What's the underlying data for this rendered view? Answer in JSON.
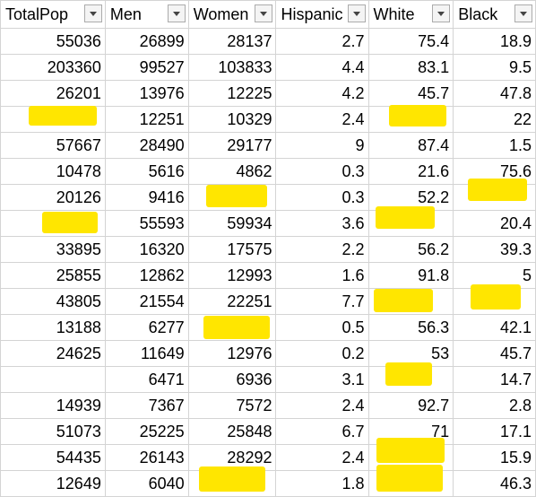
{
  "headers": [
    "TotalPop",
    "Men",
    "Women",
    "Hispanic",
    "White",
    "Black"
  ],
  "rows": [
    [
      "55036",
      "26899",
      "28137",
      "2.7",
      "75.4",
      "18.9"
    ],
    [
      "203360",
      "99527",
      "103833",
      "4.4",
      "83.1",
      "9.5"
    ],
    [
      "26201",
      "13976",
      "12225",
      "4.2",
      "45.7",
      "47.8"
    ],
    [
      "",
      "12251",
      "10329",
      "2.4",
      "",
      "22"
    ],
    [
      "57667",
      "28490",
      "29177",
      "9",
      "87.4",
      "1.5"
    ],
    [
      "10478",
      "5616",
      "4862",
      "0.3",
      "21.6",
      "75.6"
    ],
    [
      "20126",
      "9416",
      "",
      "0.3",
      "52.2",
      ""
    ],
    [
      "",
      "55593",
      "59934",
      "3.6",
      "",
      "20.4"
    ],
    [
      "33895",
      "16320",
      "17575",
      "2.2",
      "56.2",
      "39.3"
    ],
    [
      "25855",
      "12862",
      "12993",
      "1.6",
      "91.8",
      "5"
    ],
    [
      "43805",
      "21554",
      "22251",
      "7.7",
      "",
      ""
    ],
    [
      "13188",
      "6277",
      "",
      "0.5",
      "56.3",
      "42.1"
    ],
    [
      "24625",
      "11649",
      "12976",
      "0.2",
      "53",
      "45.7"
    ],
    [
      "",
      "6471",
      "6936",
      "3.1",
      "",
      "14.7"
    ],
    [
      "14939",
      "7367",
      "7572",
      "2.4",
      "92.7",
      "2.8"
    ],
    [
      "51073",
      "25225",
      "25848",
      "6.7",
      "71",
      "17.1"
    ],
    [
      "54435",
      "26143",
      "28292",
      "2.4",
      "",
      "15.9"
    ],
    [
      "12649",
      "6040",
      "",
      "1.8",
      "",
      "46.3"
    ]
  ],
  "highlight_color": "#ffe600",
  "filter_icon": "chevron-down-icon"
}
